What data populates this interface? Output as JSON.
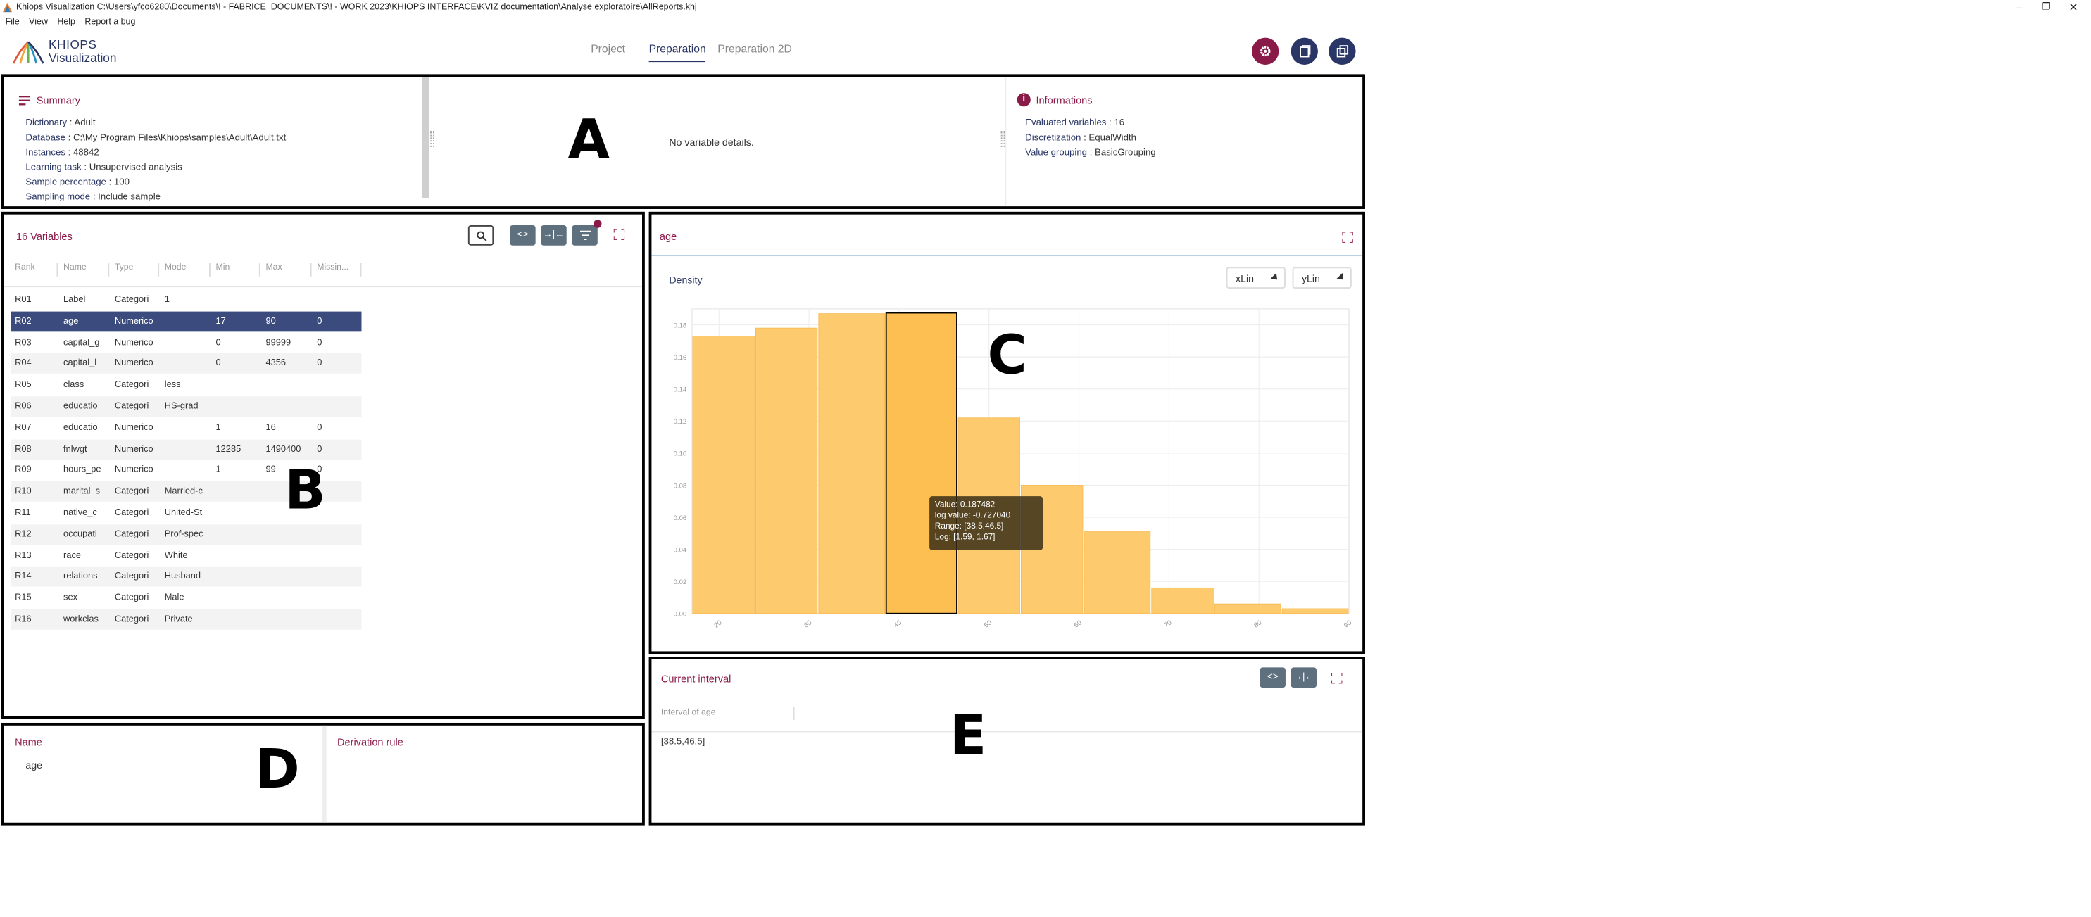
{
  "window": {
    "title": "Khiops Visualization C:\\Users\\yfco6280\\Documents\\! - FABRICE_DOCUMENTS\\! - WORK 2023\\KHIOPS INTERFACE\\KVIZ documentation\\Analyse exploratoire\\AllReports.khj",
    "minimize": "–",
    "restore": "❐",
    "close": "✕"
  },
  "menu": [
    "File",
    "View",
    "Help",
    "Report a bug"
  ],
  "logo": {
    "line1": "KHIOPS",
    "line2": "Visualization"
  },
  "tabs": [
    {
      "label": "Project",
      "active": false
    },
    {
      "label": "Preparation",
      "active": true
    },
    {
      "label": "Preparation 2D",
      "active": false
    }
  ],
  "header_buttons": [
    {
      "name": "settings-button",
      "icon": "gear-icon",
      "color": "#8a1a48"
    },
    {
      "name": "open-file-button",
      "icon": "file-icon",
      "color": "#2a3766"
    },
    {
      "name": "open-file-alt-button",
      "icon": "copy-icon",
      "color": "#2a3766"
    }
  ],
  "summary": {
    "title": "Summary",
    "rows": [
      {
        "label": "Dictionary",
        "value": "Adult"
      },
      {
        "label": "Database",
        "value": "C:\\My Program Files\\Khiops\\samples\\Adult\\Adult.txt"
      },
      {
        "label": "Instances",
        "value": "48842"
      },
      {
        "label": "Learning task",
        "value": "Unsupervised analysis"
      },
      {
        "label": "Sample percentage",
        "value": "100"
      },
      {
        "label": "Sampling mode",
        "value": "Include sample"
      }
    ]
  },
  "variable_details": {
    "empty_text": "No variable details."
  },
  "informations": {
    "title": "Informations",
    "rows": [
      {
        "label": "Evaluated variables",
        "value": "16"
      },
      {
        "label": "Discretization",
        "value": "EqualWidth"
      },
      {
        "label": "Value grouping",
        "value": "BasicGrouping"
      }
    ]
  },
  "variables": {
    "title": "16 Variables",
    "columns": [
      "Rank",
      "Name",
      "Type",
      "Mode",
      "Min",
      "Max",
      "Missin..."
    ],
    "rows": [
      [
        "R01",
        "Label",
        "Categori",
        "1",
        "",
        "",
        ""
      ],
      [
        "R02",
        "age",
        "Numerico",
        "",
        "17",
        "90",
        "0"
      ],
      [
        "R03",
        "capital_g",
        "Numerico",
        "",
        "0",
        "99999",
        "0"
      ],
      [
        "R04",
        "capital_l",
        "Numerico",
        "",
        "0",
        "4356",
        "0"
      ],
      [
        "R05",
        "class",
        "Categori",
        "less",
        "",
        "",
        ""
      ],
      [
        "R06",
        "educatio",
        "Categori",
        "HS-grad",
        "",
        "",
        ""
      ],
      [
        "R07",
        "educatio",
        "Numerico",
        "",
        "1",
        "16",
        "0"
      ],
      [
        "R08",
        "fnlwgt",
        "Numerico",
        "",
        "12285",
        "1490400",
        "0"
      ],
      [
        "R09",
        "hours_pe",
        "Numerico",
        "",
        "1",
        "99",
        "0"
      ],
      [
        "R10",
        "marital_s",
        "Categori",
        "Married-c",
        "",
        "",
        ""
      ],
      [
        "R11",
        "native_c",
        "Categori",
        "United-St",
        "",
        "",
        ""
      ],
      [
        "R12",
        "occupati",
        "Categori",
        "Prof-spec",
        "",
        "",
        ""
      ],
      [
        "R13",
        "race",
        "Categori",
        "White",
        "",
        "",
        ""
      ],
      [
        "R14",
        "relations",
        "Categori",
        "Husband",
        "",
        "",
        ""
      ],
      [
        "R15",
        "sex",
        "Categori",
        "Male",
        "",
        "",
        ""
      ],
      [
        "R16",
        "workclas",
        "Categori",
        "Private",
        "",
        "",
        ""
      ]
    ],
    "selected_index": 1
  },
  "derivation": {
    "name_label": "Name",
    "name_value": "age",
    "rule_label": "Derivation rule"
  },
  "chart_panel": {
    "title": "age",
    "density_label": "Density",
    "x_scale": "xLin",
    "y_scale": "yLin"
  },
  "chart_data": {
    "type": "bar",
    "title": "age",
    "ylabel": "Density",
    "xlabel": "",
    "x_scale": "linear",
    "y_scale": "linear",
    "xlim": [
      17,
      90
    ],
    "ylim": [
      0,
      0.19
    ],
    "x_ticks": [
      "20",
      "30",
      "40",
      "50",
      "60",
      "70",
      "80",
      "90"
    ],
    "y_ticks": [
      "0.00",
      "0.02",
      "0.04",
      "0.06",
      "0.08",
      "0.10",
      "0.12",
      "0.14",
      "0.16",
      "0.18"
    ],
    "bins": [
      {
        "start": 17,
        "end": 24,
        "value": 0.173
      },
      {
        "start": 24,
        "end": 31,
        "value": 0.178
      },
      {
        "start": 31,
        "end": 38.5,
        "value": 0.187
      },
      {
        "start": 38.5,
        "end": 46.5,
        "value": 0.187482
      },
      {
        "start": 46.5,
        "end": 53.5,
        "value": 0.122
      },
      {
        "start": 53.5,
        "end": 60.5,
        "value": 0.08
      },
      {
        "start": 60.5,
        "end": 68,
        "value": 0.051
      },
      {
        "start": 68,
        "end": 75,
        "value": 0.016
      },
      {
        "start": 75,
        "end": 82.5,
        "value": 0.006
      },
      {
        "start": 82.5,
        "end": 90,
        "value": 0.003
      }
    ],
    "selected_bin": 3,
    "bar_color": "#fdca6e",
    "selected_color": "#fdbf52",
    "grid": true,
    "tooltip": {
      "value": "Value: 0.187482",
      "log_value": "log value: -0.727040",
      "range": "Range: [38.5,46.5]",
      "log": "Log: [1.59, 1.67]"
    }
  },
  "current_interval": {
    "title": "Current interval",
    "column": "Interval of age",
    "value": "[38.5,46.5]"
  },
  "annotations": {
    "a": "A",
    "b": "B",
    "c": "C",
    "d": "D",
    "e": "E"
  }
}
